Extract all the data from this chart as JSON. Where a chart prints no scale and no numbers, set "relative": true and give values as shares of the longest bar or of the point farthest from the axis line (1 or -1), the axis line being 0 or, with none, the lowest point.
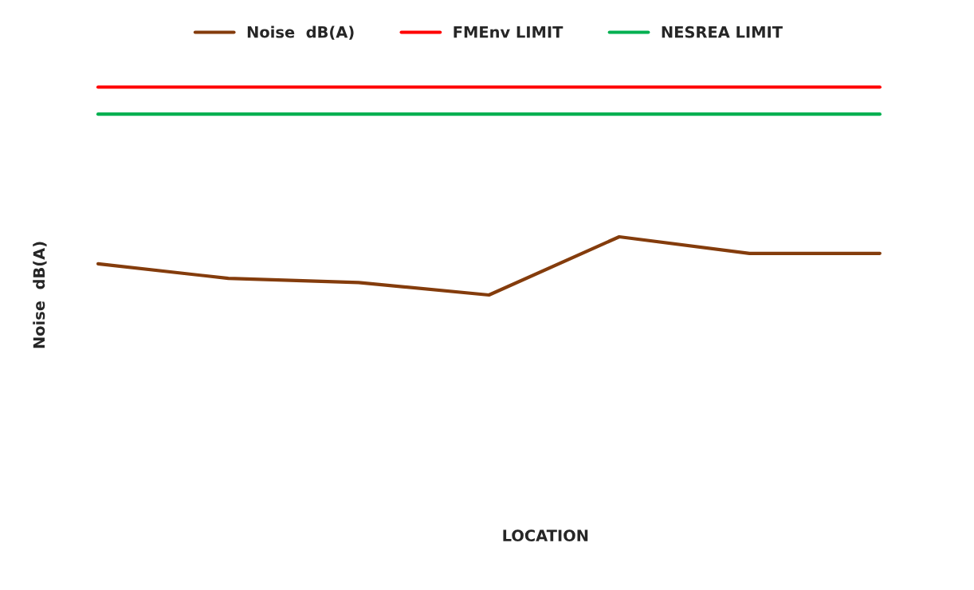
{
  "chart_data": {
    "type": "line",
    "relative": true,
    "annotations": [
      "LOCATION"
    ],
    "ylabel": "Noise  dB(A)",
    "categories": [
      null,
      null,
      null,
      null,
      null,
      null,
      null
    ],
    "series": [
      {
        "name": "Noise  dB(A)",
        "color": "#843c0c",
        "values": [
          0.15,
          0.08,
          0.06,
          0,
          0.28,
          0.2,
          0.2
        ]
      },
      {
        "name": "FMEnv LIMIT",
        "color": "#ff0000",
        "values": [
          1,
          1,
          1,
          1,
          1,
          1,
          1
        ]
      },
      {
        "name": "NESREA LIMIT",
        "color": "#00b050",
        "values": [
          0.87,
          0.87,
          0.87,
          0.87,
          0.87,
          0.87,
          0.87
        ]
      }
    ],
    "legend": "top",
    "grid": false,
    "marker": "none",
    "line_style": "solid"
  }
}
